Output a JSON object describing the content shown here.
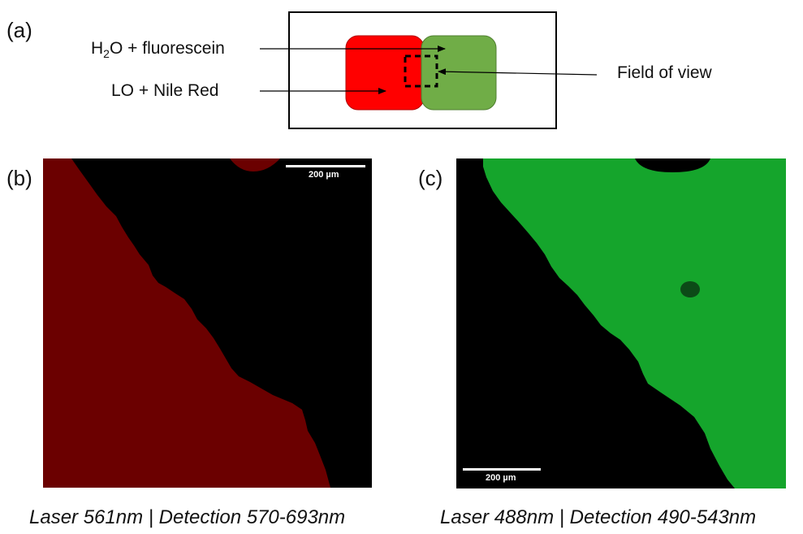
{
  "panel_labels": {
    "a": "(a)",
    "b": "(b)",
    "c": "(c)"
  },
  "diagram": {
    "label_water_prefix": "H",
    "label_water_sub": "2",
    "label_water_suffix": "O + fluorescein",
    "label_oil": "LO + Nile Red",
    "label_fov": "Field of view",
    "colors": {
      "oil_drop": "#ff0000",
      "water_drop": "#70ad47",
      "frame": "#000000"
    }
  },
  "image_b": {
    "scale_bar_label": "200 µm",
    "colors": {
      "signal": "#6b0000",
      "background": "#000000"
    },
    "caption": "Laser 561nm | Detection 570-693nm"
  },
  "image_c": {
    "scale_bar_label": "200 µm",
    "colors": {
      "signal": "#15a52c",
      "background": "#000000"
    },
    "caption": "Laser 488nm | Detection 490-543nm"
  }
}
